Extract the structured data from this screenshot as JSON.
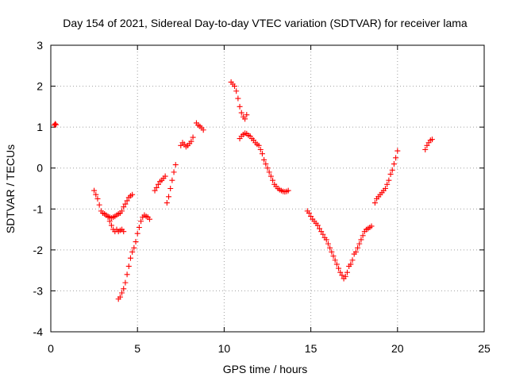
{
  "chart_data": {
    "type": "scatter",
    "title": "Day 154 of 2021, Sidereal Day-to-day VTEC variation (SDTVAR) for receiver lama",
    "xlabel": "GPS time / hours",
    "ylabel": "SDTVAR / TECUs",
    "xlim": [
      0,
      25
    ],
    "ylim": [
      -4,
      3
    ],
    "xticks": [
      0,
      5,
      10,
      15,
      20,
      25
    ],
    "yticks": [
      -4,
      -3,
      -2,
      -1,
      0,
      1,
      2,
      3
    ],
    "xtick_labels": [
      "0",
      "5",
      "10",
      "15",
      "20",
      "25"
    ],
    "ytick_labels": [
      "-4",
      "-3",
      "-2",
      "-1",
      "0",
      "1",
      "2",
      "3"
    ],
    "grid": true,
    "marker": "plus",
    "color": "#ff0000",
    "series": [
      {
        "x": [
          0.2,
          0.25,
          0.3,
          2.5,
          2.6,
          2.7,
          2.8,
          2.9,
          3.0,
          3.1,
          3.2,
          3.3,
          3.4,
          3.5,
          3.6,
          3.7,
          3.8,
          3.9,
          4.0,
          4.1,
          4.2,
          4.3,
          4.4,
          4.5,
          4.6,
          4.7,
          3.3,
          3.4,
          3.5,
          3.6,
          3.7,
          3.8,
          3.9,
          4.0,
          4.1,
          4.2,
          3.9,
          4.0,
          4.1,
          4.2,
          4.3,
          4.4,
          4.5,
          4.6,
          4.7,
          4.8,
          4.9,
          5.0,
          5.1,
          5.2,
          5.3,
          5.4,
          5.5,
          5.6,
          5.7,
          6.0,
          6.1,
          6.2,
          6.3,
          6.4,
          6.5,
          6.6,
          6.7,
          6.8,
          6.9,
          7.0,
          7.1,
          7.2,
          7.5,
          7.6,
          7.7,
          7.8,
          7.9,
          8.0,
          8.1,
          8.2,
          8.4,
          8.5,
          8.6,
          8.7,
          8.8,
          10.4,
          10.5,
          10.6,
          10.7,
          10.8,
          10.9,
          11.0,
          11.1,
          11.2,
          11.3,
          10.9,
          11.0,
          11.1,
          11.2,
          11.3,
          11.4,
          11.5,
          11.6,
          11.7,
          11.8,
          11.9,
          12.0,
          12.1,
          12.2,
          12.3,
          12.4,
          12.5,
          12.6,
          12.7,
          12.8,
          12.9,
          13.0,
          13.1,
          13.2,
          13.3,
          13.4,
          13.5,
          13.6,
          13.7,
          14.8,
          14.9,
          15.0,
          15.1,
          15.2,
          15.3,
          15.4,
          15.5,
          15.6,
          15.7,
          15.8,
          15.9,
          16.0,
          16.1,
          16.2,
          16.3,
          16.4,
          16.5,
          16.6,
          16.7,
          16.8,
          16.9,
          17.0,
          17.1,
          17.2,
          17.3,
          17.4,
          17.5,
          17.6,
          17.7,
          17.8,
          17.9,
          18.0,
          18.1,
          18.2,
          18.3,
          18.4,
          18.5,
          18.7,
          18.8,
          18.9,
          19.0,
          19.1,
          19.2,
          19.3,
          19.4,
          19.5,
          19.6,
          19.7,
          19.8,
          19.9,
          20.0,
          21.6,
          21.7,
          21.8,
          21.9,
          22.0
        ],
        "y": [
          1.05,
          1.08,
          1.06,
          -0.55,
          -0.65,
          -0.75,
          -0.9,
          -1.05,
          -1.1,
          -1.12,
          -1.15,
          -1.18,
          -1.2,
          -1.22,
          -1.2,
          -1.18,
          -1.15,
          -1.12,
          -1.1,
          -1.05,
          -0.95,
          -0.88,
          -0.8,
          -0.72,
          -0.68,
          -0.65,
          -1.2,
          -1.3,
          -1.4,
          -1.5,
          -1.55,
          -1.5,
          -1.55,
          -1.52,
          -1.5,
          -1.55,
          -3.2,
          -3.15,
          -3.05,
          -2.95,
          -2.8,
          -2.6,
          -2.4,
          -2.2,
          -2.05,
          -1.95,
          -1.8,
          -1.6,
          -1.45,
          -1.3,
          -1.2,
          -1.15,
          -1.18,
          -1.2,
          -1.25,
          -0.55,
          -0.48,
          -0.4,
          -0.33,
          -0.3,
          -0.25,
          -0.2,
          -0.85,
          -0.7,
          -0.5,
          -0.3,
          -0.1,
          0.08,
          0.55,
          0.62,
          0.58,
          0.52,
          0.55,
          0.6,
          0.65,
          0.75,
          1.1,
          1.05,
          1.02,
          0.98,
          0.93,
          2.1,
          2.05,
          2.0,
          1.88,
          1.7,
          1.5,
          1.35,
          1.25,
          1.2,
          1.3,
          0.72,
          0.78,
          0.82,
          0.85,
          0.84,
          0.8,
          0.78,
          0.72,
          0.68,
          0.62,
          0.58,
          0.55,
          0.45,
          0.35,
          0.2,
          0.1,
          0.0,
          -0.1,
          -0.2,
          -0.3,
          -0.4,
          -0.45,
          -0.5,
          -0.53,
          -0.55,
          -0.57,
          -0.58,
          -0.57,
          -0.55,
          -1.05,
          -1.1,
          -1.18,
          -1.25,
          -1.3,
          -1.35,
          -1.4,
          -1.48,
          -1.55,
          -1.62,
          -1.7,
          -1.75,
          -1.85,
          -1.95,
          -2.05,
          -2.15,
          -2.25,
          -2.35,
          -2.45,
          -2.55,
          -2.62,
          -2.7,
          -2.65,
          -2.55,
          -2.4,
          -2.35,
          -2.25,
          -2.1,
          -2.05,
          -1.95,
          -1.85,
          -1.75,
          -1.65,
          -1.55,
          -1.5,
          -1.48,
          -1.45,
          -1.42,
          -0.85,
          -0.75,
          -0.7,
          -0.65,
          -0.6,
          -0.55,
          -0.5,
          -0.4,
          -0.3,
          -0.15,
          -0.05,
          0.1,
          0.25,
          0.42,
          0.45,
          0.55,
          0.62,
          0.68,
          0.7
        ]
      }
    ]
  }
}
